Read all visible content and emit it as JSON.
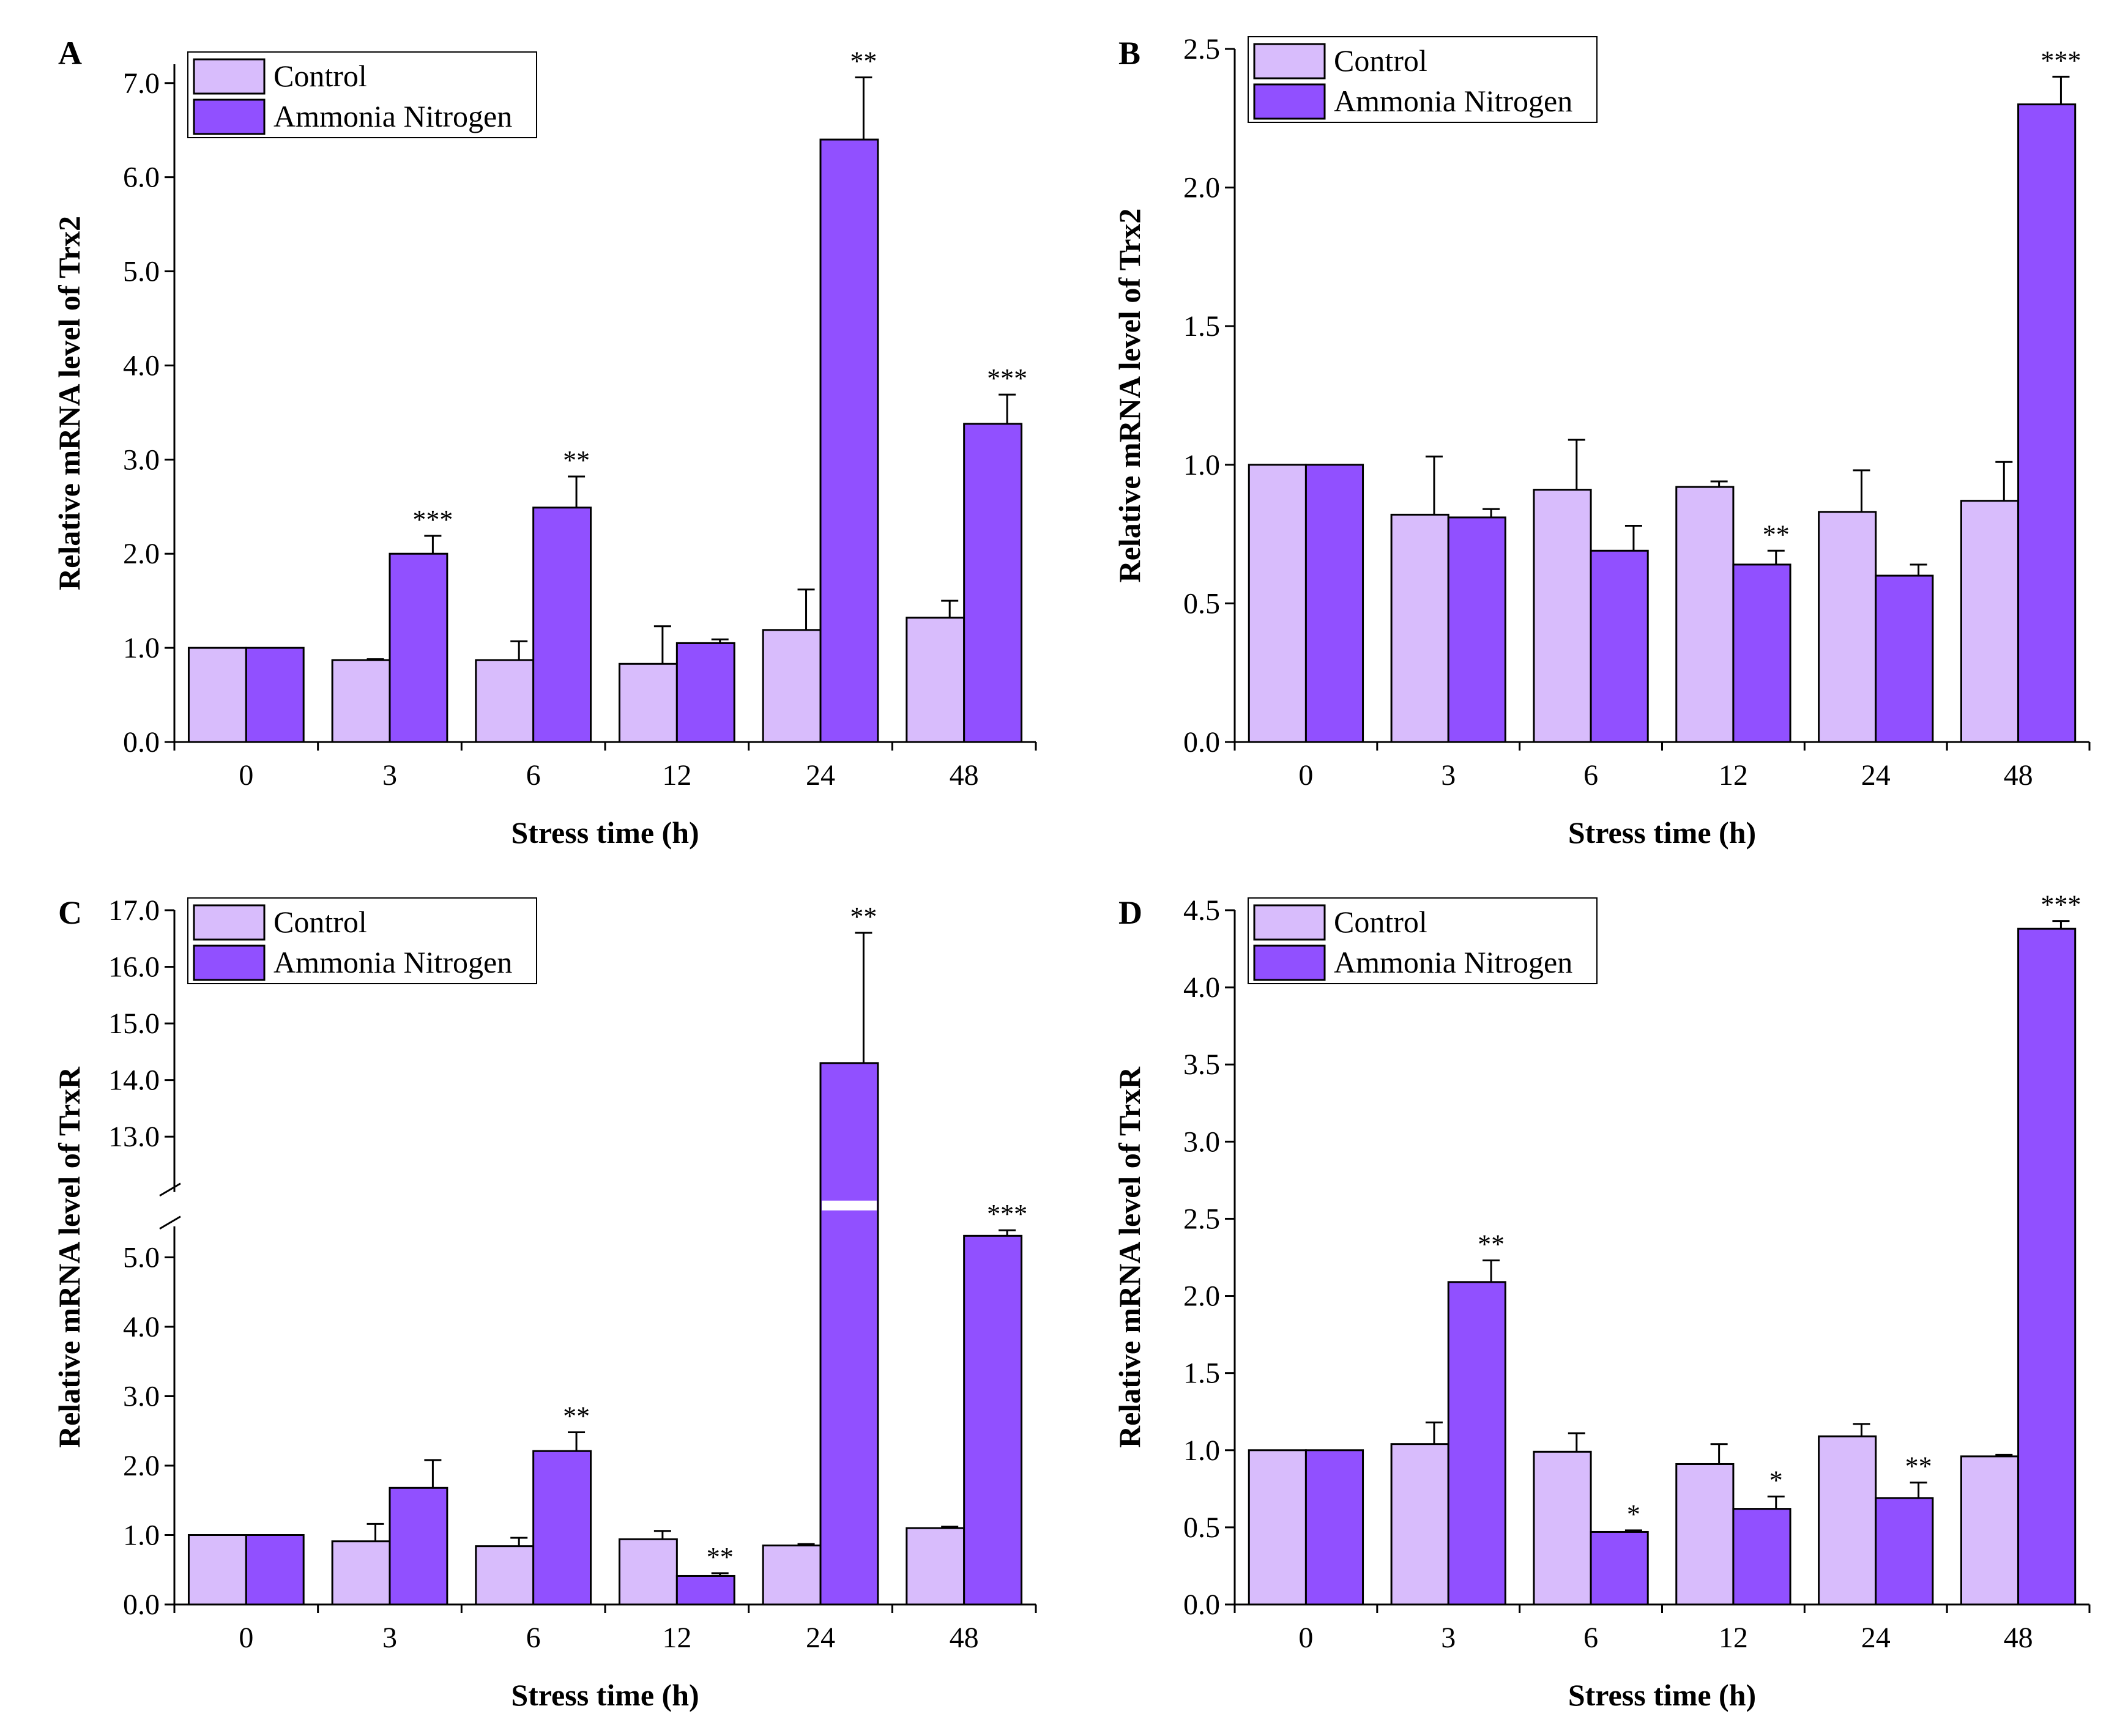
{
  "colors": {
    "control": "#d8bcfc",
    "ammonia": "#9150ff",
    "axis": "#000000"
  },
  "chart_data": [
    {
      "panel": "A",
      "type": "bar",
      "xlabel": "Stress time (h)",
      "ylabel": "Relative mRNA level of Trx2",
      "categories": [
        "0",
        "3",
        "6",
        "12",
        "24",
        "48"
      ],
      "ylim": [
        0,
        7.2
      ],
      "yticks": [
        0,
        1,
        2,
        3,
        4,
        5,
        6,
        7
      ],
      "ytick_labels": [
        "0.0",
        "1.0",
        "2.0",
        "3.0",
        "4.0",
        "5.0",
        "6.0",
        "7.0"
      ],
      "legend": [
        "Control",
        "Ammonia Nitrogen"
      ],
      "legend_position": "top-left",
      "series": [
        {
          "name": "Control",
          "values": [
            1.0,
            0.87,
            0.87,
            0.83,
            1.19,
            1.32
          ],
          "errors": [
            0,
            0.01,
            0.2,
            0.4,
            0.43,
            0.18
          ]
        },
        {
          "name": "Ammonia Nitrogen",
          "values": [
            1.0,
            2.0,
            2.49,
            1.05,
            6.4,
            3.38
          ],
          "errors": [
            0,
            0.19,
            0.33,
            0.04,
            0.66,
            0.31
          ]
        }
      ],
      "significance": [
        "",
        "***",
        "**",
        "",
        "**",
        "***"
      ]
    },
    {
      "panel": "B",
      "type": "bar",
      "xlabel": "Stress time (h)",
      "ylabel": "Relative mRNA level of Trx2",
      "categories": [
        "0",
        "3",
        "6",
        "12",
        "24",
        "48"
      ],
      "ylim": [
        0,
        2.5
      ],
      "yticks": [
        0,
        0.5,
        1,
        1.5,
        2,
        2.5
      ],
      "ytick_labels": [
        "0.0",
        "0.5",
        "1.0",
        "1.5",
        "2.0",
        "2.5"
      ],
      "legend": [
        "Control",
        "Ammonia Nitrogen"
      ],
      "legend_position": "top-left",
      "series": [
        {
          "name": "Control",
          "values": [
            1.0,
            0.82,
            0.91,
            0.92,
            0.83,
            0.87
          ],
          "errors": [
            0,
            0.21,
            0.18,
            0.02,
            0.15,
            0.14
          ]
        },
        {
          "name": "Ammonia Nitrogen",
          "values": [
            1.0,
            0.81,
            0.69,
            0.64,
            0.6,
            2.3
          ],
          "errors": [
            0,
            0.03,
            0.09,
            0.05,
            0.04,
            0.1
          ]
        }
      ],
      "significance": [
        "",
        "",
        "",
        "**",
        "",
        "***"
      ]
    },
    {
      "panel": "C",
      "type": "bar",
      "xlabel": "Stress time (h)",
      "ylabel": "Relative mRNA level of TrxR",
      "categories": [
        "0",
        "3",
        "6",
        "12",
        "24",
        "48"
      ],
      "ylim": [
        0,
        17
      ],
      "axis_break": [
        5.5,
        12.0
      ],
      "yticks": [
        0,
        1,
        2,
        3,
        4,
        5,
        13,
        14,
        15,
        16,
        17
      ],
      "ytick_labels": [
        "0.0",
        "1.0",
        "2.0",
        "3.0",
        "4.0",
        "5.0",
        "13.0",
        "14.0",
        "15.0",
        "16.0",
        "17.0"
      ],
      "legend": [
        "Control",
        "Ammonia Nitrogen"
      ],
      "legend_position": "top-left",
      "series": [
        {
          "name": "Control",
          "values": [
            1.0,
            0.91,
            0.84,
            0.94,
            0.85,
            1.1
          ],
          "errors": [
            0,
            0.25,
            0.12,
            0.12,
            0.02,
            0.02
          ]
        },
        {
          "name": "Ammonia Nitrogen",
          "values": [
            1.0,
            1.68,
            2.21,
            0.41,
            14.3,
            5.31
          ],
          "errors": [
            0,
            0.4,
            0.27,
            0.04,
            2.3,
            0.08
          ]
        }
      ],
      "significance": [
        "",
        "",
        "**",
        "**",
        "**",
        "***"
      ]
    },
    {
      "panel": "D",
      "type": "bar",
      "xlabel": "Stress time (h)",
      "ylabel": "Relative mRNA level of TrxR",
      "categories": [
        "0",
        "3",
        "6",
        "12",
        "24",
        "48"
      ],
      "ylim": [
        0,
        4.5
      ],
      "yticks": [
        0,
        0.5,
        1,
        1.5,
        2,
        2.5,
        3,
        3.5,
        4,
        4.5
      ],
      "ytick_labels": [
        "0.0",
        "0.5",
        "1.0",
        "1.5",
        "2.0",
        "2.5",
        "3.0",
        "3.5",
        "4.0",
        "4.5"
      ],
      "legend": [
        "Control",
        "Ammonia Nitrogen"
      ],
      "legend_position": "top-left",
      "series": [
        {
          "name": "Control",
          "values": [
            1.0,
            1.04,
            0.99,
            0.91,
            1.09,
            0.96
          ],
          "errors": [
            0,
            0.14,
            0.12,
            0.13,
            0.08,
            0.01
          ]
        },
        {
          "name": "Ammonia Nitrogen",
          "values": [
            1.0,
            2.09,
            0.47,
            0.62,
            0.69,
            4.38
          ],
          "errors": [
            0,
            0.14,
            0.01,
            0.08,
            0.1,
            0.05
          ]
        }
      ],
      "significance": [
        "",
        "**",
        "*",
        "*",
        "**",
        "***"
      ]
    }
  ]
}
